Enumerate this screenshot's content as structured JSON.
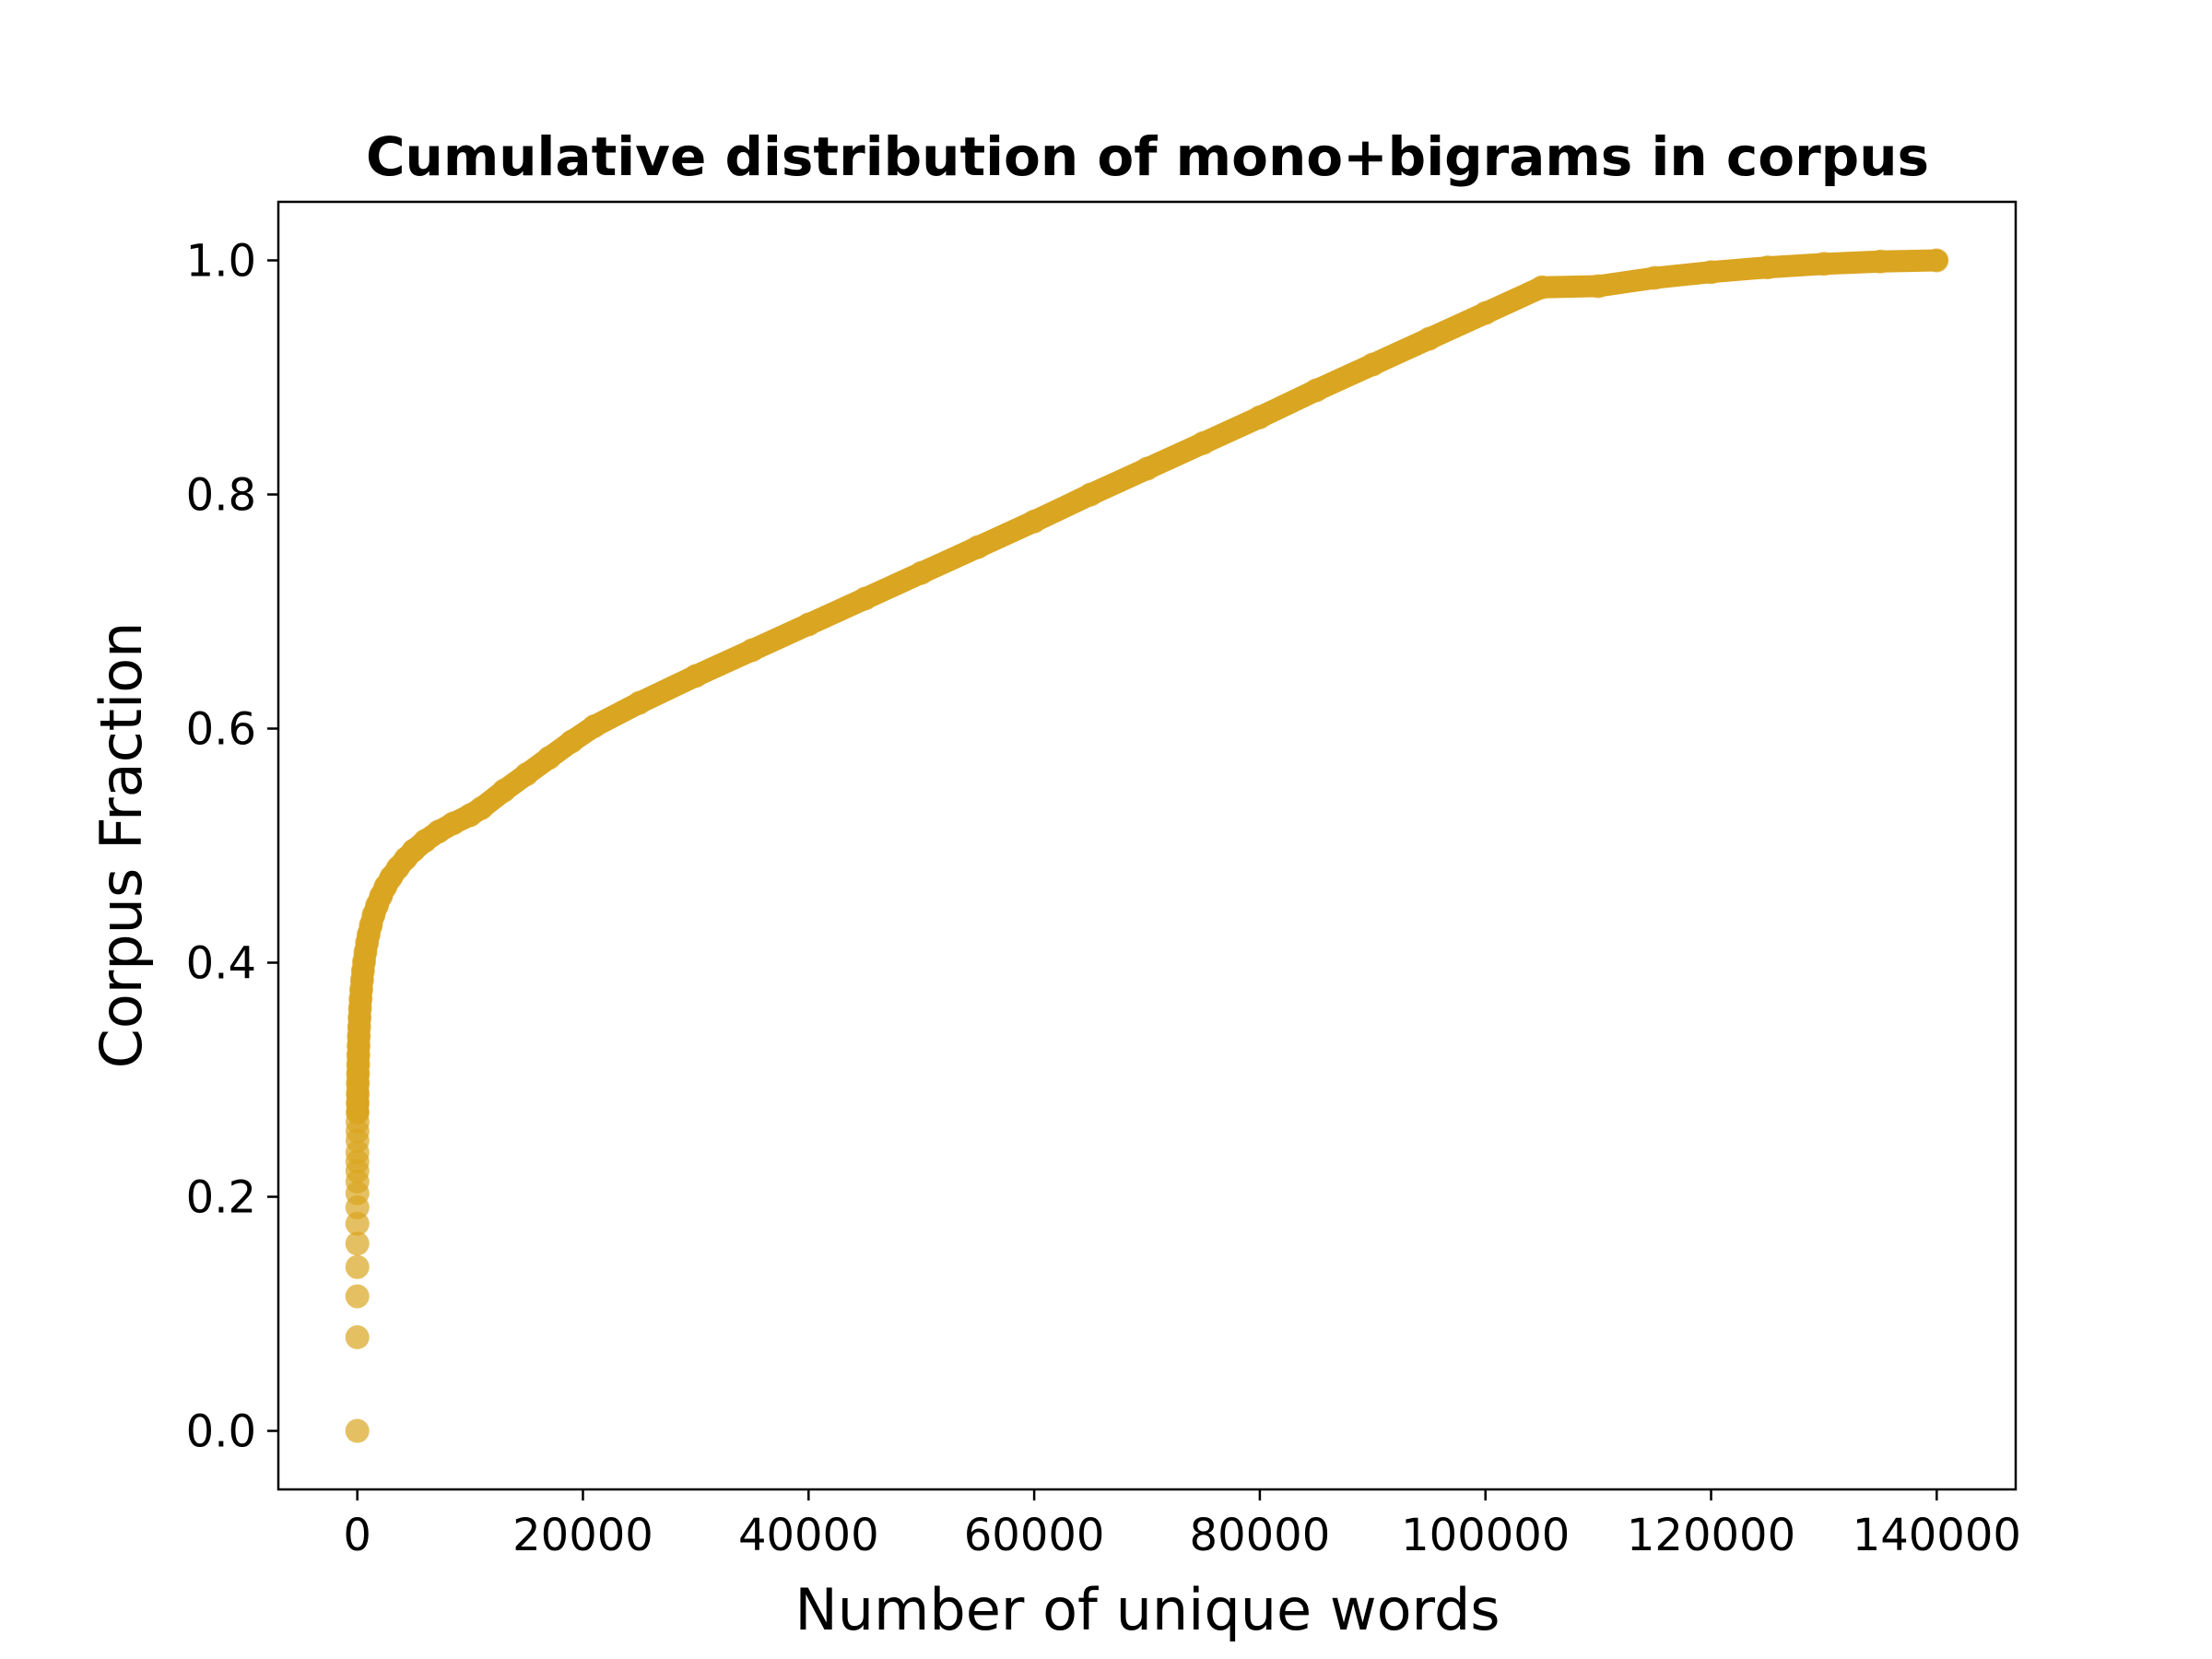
{
  "chart_data": {
    "type": "scatter",
    "title": "Cumulative distribution of mono+bigrams in corpus",
    "xlabel": "Number of unique words",
    "ylabel": "Corpus Fraction",
    "xlim": [
      -7000,
      147000
    ],
    "ylim": [
      -0.05,
      1.05
    ],
    "x_ticks": [
      0,
      20000,
      40000,
      60000,
      80000,
      100000,
      120000,
      140000
    ],
    "x_tick_labels": [
      "0",
      "20000",
      "40000",
      "60000",
      "80000",
      "100000",
      "120000",
      "140000"
    ],
    "y_ticks": [
      0.0,
      0.2,
      0.4,
      0.6,
      0.8,
      1.0
    ],
    "y_tick_labels": [
      "0.0",
      "0.2",
      "0.4",
      "0.6",
      "0.8",
      "1.0"
    ],
    "grid": false,
    "legend": "none",
    "marker_color": "#DAA520",
    "marker_alpha": 0.7,
    "series": [
      {
        "x": [
          0,
          1,
          2,
          3,
          4,
          5,
          6,
          7,
          8,
          9,
          10,
          12,
          15,
          18,
          22,
          27,
          33,
          40,
          50,
          62,
          75,
          90,
          110,
          135,
          165,
          200,
          240,
          290,
          350,
          420,
          500,
          600,
          720,
          860,
          1000,
          1200,
          1450,
          1750,
          2100,
          2500,
          3000,
          3600,
          4300,
          5000,
          6000,
          7200,
          8500,
          10000,
          11000,
          13000,
          15000,
          17000,
          19000,
          21000,
          25000,
          30000,
          35000,
          40000,
          45000,
          50000,
          55000,
          60000,
          65000,
          70000,
          75000,
          80000,
          85000,
          90000,
          95000,
          100000,
          105000,
          110000,
          115000,
          120000,
          125000,
          130000,
          135000,
          140000
        ],
        "y": [
          0.0,
          0.08,
          0.115,
          0.14,
          0.16,
          0.177,
          0.191,
          0.203,
          0.213,
          0.222,
          0.23,
          0.238,
          0.248,
          0.256,
          0.264,
          0.272,
          0.28,
          0.288,
          0.297,
          0.305,
          0.313,
          0.321,
          0.329,
          0.337,
          0.345,
          0.353,
          0.361,
          0.369,
          0.377,
          0.385,
          0.393,
          0.401,
          0.409,
          0.417,
          0.424,
          0.432,
          0.441,
          0.449,
          0.457,
          0.465,
          0.473,
          0.481,
          0.489,
          0.496,
          0.504,
          0.512,
          0.519,
          0.526,
          0.532,
          0.547,
          0.561,
          0.575,
          0.589,
          0.602,
          0.622,
          0.645,
          0.667,
          0.689,
          0.711,
          0.733,
          0.755,
          0.777,
          0.8,
          0.822,
          0.844,
          0.866,
          0.889,
          0.911,
          0.933,
          0.955,
          0.977,
          0.978,
          0.985,
          0.99,
          0.994,
          0.997,
          0.999,
          1.0
        ]
      }
    ]
  }
}
